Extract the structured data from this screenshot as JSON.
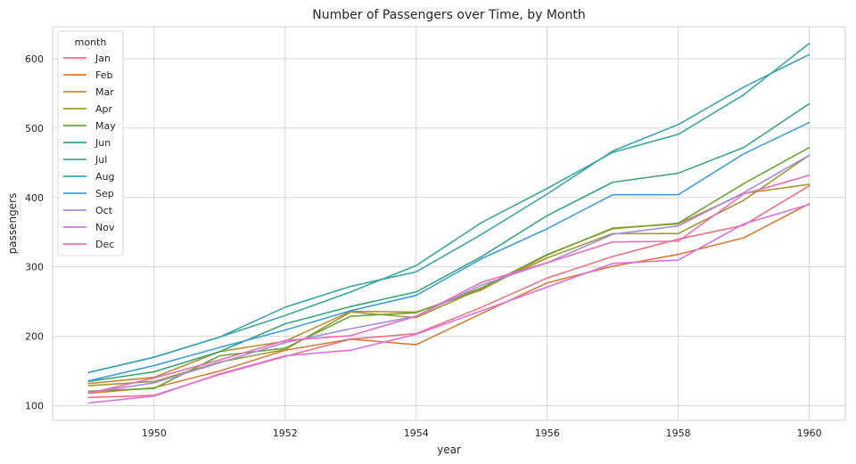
{
  "chart_data": {
    "type": "line",
    "title": "Number of Passengers over Time, by Month",
    "xlabel": "year",
    "ylabel": "passengers",
    "x": [
      1949,
      1950,
      1951,
      1952,
      1953,
      1954,
      1955,
      1956,
      1957,
      1958,
      1959,
      1960
    ],
    "xlim": [
      1948.45,
      1960.55
    ],
    "ylim": [
      79,
      646
    ],
    "xticks": [
      1950,
      1952,
      1954,
      1956,
      1958,
      1960
    ],
    "yticks": [
      100,
      200,
      300,
      400,
      500,
      600
    ],
    "grid": true,
    "legend": {
      "title": "month",
      "placement": "top-left"
    },
    "series": [
      {
        "name": "Jan",
        "color": "#f0717b",
        "values": [
          112,
          115,
          145,
          171,
          196,
          204,
          242,
          284,
          315,
          340,
          360,
          417
        ]
      },
      {
        "name": "Feb",
        "color": "#db7c34",
        "values": [
          118,
          126,
          150,
          180,
          196,
          188,
          233,
          277,
          301,
          318,
          342,
          391
        ]
      },
      {
        "name": "Mar",
        "color": "#bc8e30",
        "values": [
          132,
          141,
          178,
          193,
          236,
          235,
          267,
          317,
          356,
          362,
          406,
          419
        ]
      },
      {
        "name": "Apr",
        "color": "#9d9a32",
        "values": [
          129,
          135,
          163,
          181,
          235,
          227,
          269,
          313,
          348,
          348,
          396,
          461
        ]
      },
      {
        "name": "May",
        "color": "#6aa632",
        "values": [
          121,
          125,
          172,
          183,
          229,
          234,
          270,
          318,
          355,
          363,
          420,
          472
        ]
      },
      {
        "name": "Jun",
        "color": "#35a77a",
        "values": [
          135,
          149,
          178,
          218,
          243,
          264,
          315,
          374,
          422,
          435,
          472,
          535
        ]
      },
      {
        "name": "Jul",
        "color": "#39a99a",
        "values": [
          148,
          170,
          199,
          230,
          264,
          302,
          364,
          413,
          465,
          491,
          548,
          622
        ]
      },
      {
        "name": "Aug",
        "color": "#3aa5b3",
        "values": [
          148,
          170,
          199,
          242,
          272,
          293,
          347,
          405,
          467,
          505,
          559,
          606
        ]
      },
      {
        "name": "Sep",
        "color": "#3d9ee4",
        "values": [
          136,
          158,
          184,
          209,
          237,
          259,
          312,
          355,
          404,
          404,
          463,
          508
        ]
      },
      {
        "name": "Oct",
        "color": "#a48be8",
        "values": [
          119,
          133,
          162,
          191,
          211,
          229,
          274,
          306,
          347,
          359,
          407,
          461
        ]
      },
      {
        "name": "Nov",
        "color": "#e16ce8",
        "values": [
          104,
          114,
          146,
          172,
          180,
          203,
          237,
          271,
          305,
          310,
          362,
          390
        ]
      },
      {
        "name": "Dec",
        "color": "#f06cb5",
        "values": [
          118,
          140,
          166,
          194,
          201,
          229,
          278,
          306,
          336,
          337,
          405,
          432
        ]
      }
    ]
  }
}
